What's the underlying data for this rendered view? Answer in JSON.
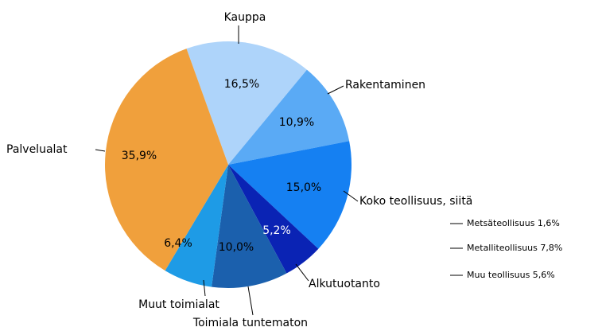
{
  "chart_data": {
    "type": "pie",
    "categories": [
      "Kauppa",
      "Rakentaminen",
      "Koko teollisuus, siitä",
      "Alkutuotanto",
      "Toimiala tuntematon",
      "Muut toimialat",
      "Palvelualat"
    ],
    "values": [
      16.5,
      10.9,
      15.0,
      5.2,
      10.0,
      6.4,
      35.9
    ],
    "value_labels": [
      "16,5%",
      "10,9%",
      "15,0%",
      "5,2%",
      "10,0%",
      "6,4%",
      "35,9%"
    ],
    "colors": [
      "#aed4fa",
      "#5aaaf5",
      "#1580f2",
      "#0a23b4",
      "#1b60ad",
      "#1e9be6",
      "#f0a03c"
    ],
    "annotations": [
      "Metsäteollisuus 1,6%",
      "Metalliteollisuus 7,8%",
      "Muu teollisuus 5,6%"
    ]
  }
}
